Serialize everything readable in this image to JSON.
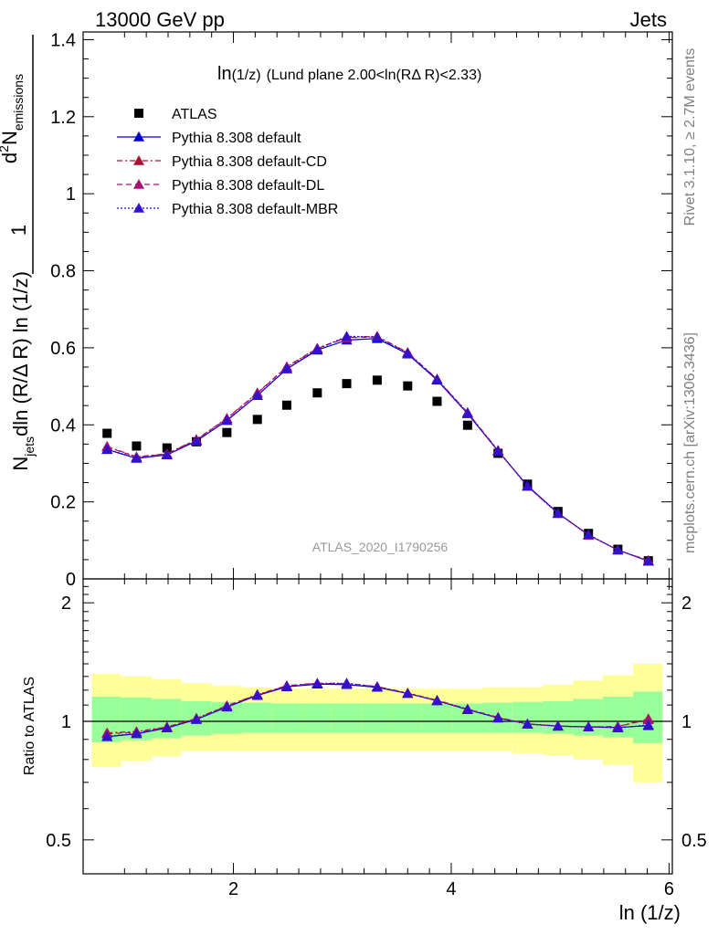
{
  "header": {
    "left": "13000 GeV pp",
    "right": "Jets"
  },
  "side_labels": {
    "rivet": "Rivet 3.1.10, ≥ 2.7M events",
    "mcplots": "mcplots.cern.ch [arXiv:1306.3436]"
  },
  "main_panel": {
    "title_main": "ln",
    "title_sub": "(1/z)",
    "title_rest": "(Lund plane 2.00<ln(RΔ R)<2.33)",
    "watermark": "ATLAS_2020_I1790256",
    "ylabel": {
      "num_prefix": "d",
      "num_sup": "2",
      "num_N": "N",
      "num_sub": "emissions",
      "den_N": "N",
      "den_sub": "jets",
      "den_rest": "dln (R/Δ R) ln (1/z)",
      "one": "1"
    }
  },
  "ratio_panel": {
    "ylabel": "Ratio to ATLAS"
  },
  "xlabel": "ln (1/z)",
  "colors": {
    "data": "#000000",
    "default": "#0000cc",
    "cd": "#aa1133",
    "dl": "#aa1177",
    "mbr": "#3311cc",
    "band_outer": "#ffff99",
    "band_inner": "#99ff99"
  },
  "chart_data": {
    "type": "scatter",
    "x": [
      0.84,
      1.11,
      1.39,
      1.66,
      1.94,
      2.22,
      2.49,
      2.77,
      3.04,
      3.32,
      3.6,
      3.87,
      4.15,
      4.43,
      4.7,
      4.98,
      5.26,
      5.53,
      5.81
    ],
    "x_edges": [
      0.7,
      0.97,
      1.25,
      1.52,
      1.8,
      2.08,
      2.35,
      2.63,
      2.9,
      3.18,
      3.46,
      3.73,
      4.01,
      4.29,
      4.56,
      4.84,
      5.12,
      5.39,
      5.67,
      5.94
    ],
    "xlim": [
      0.62,
      6.03
    ],
    "xticks": [
      "2",
      "4",
      "6"
    ],
    "main": {
      "ylim": [
        0,
        1.42
      ],
      "yticks": [
        "0",
        "0.2",
        "0.4",
        "0.6",
        "0.8",
        "1",
        "1.2",
        "1.4"
      ],
      "series": [
        {
          "name": "ATLAS",
          "style": "data",
          "values": [
            0.378,
            0.345,
            0.34,
            0.356,
            0.38,
            0.414,
            0.451,
            0.483,
            0.507,
            0.516,
            0.501,
            0.461,
            0.399,
            0.326,
            0.246,
            0.175,
            0.118,
            0.077,
            0.047
          ]
        },
        {
          "name": "Pythia 8.308 default",
          "style": "default",
          "values": [
            0.336,
            0.313,
            0.322,
            0.358,
            0.411,
            0.476,
            0.545,
            0.594,
            0.62,
            0.624,
            0.584,
            0.516,
            0.429,
            0.332,
            0.242,
            0.171,
            0.114,
            0.075,
            0.046
          ]
        },
        {
          "name": "Pythia 8.308 default-CD",
          "style": "cd",
          "values": [
            0.344,
            0.317,
            0.325,
            0.362,
            0.417,
            0.483,
            0.551,
            0.599,
            0.627,
            0.63,
            0.588,
            0.519,
            0.432,
            0.334,
            0.24,
            0.17,
            0.114,
            0.075,
            0.048
          ]
        },
        {
          "name": "Pythia 8.308 default-DL",
          "style": "dl",
          "values": [
            0.343,
            0.316,
            0.324,
            0.361,
            0.416,
            0.482,
            0.55,
            0.598,
            0.626,
            0.628,
            0.587,
            0.518,
            0.431,
            0.333,
            0.24,
            0.17,
            0.114,
            0.075,
            0.047
          ]
        },
        {
          "name": "Pythia 8.308 default-MBR",
          "style": "mbr",
          "values": [
            0.337,
            0.314,
            0.322,
            0.358,
            0.412,
            0.477,
            0.546,
            0.596,
            0.63,
            0.628,
            0.585,
            0.518,
            0.43,
            0.332,
            0.241,
            0.17,
            0.115,
            0.075,
            0.046
          ]
        }
      ]
    },
    "ratio": {
      "ylim": [
        0.41,
        2.3
      ],
      "yticks": [
        "0.5",
        "1",
        "2"
      ],
      "band_outer_lo": [
        0.765,
        0.795,
        0.815,
        0.84,
        0.84,
        0.84,
        0.84,
        0.84,
        0.84,
        0.84,
        0.84,
        0.84,
        0.84,
        0.84,
        0.83,
        0.82,
        0.8,
        0.775,
        0.7
      ],
      "band_outer_hi": [
        1.32,
        1.3,
        1.28,
        1.25,
        1.23,
        1.22,
        1.21,
        1.21,
        1.21,
        1.21,
        1.21,
        1.21,
        1.21,
        1.22,
        1.22,
        1.24,
        1.27,
        1.31,
        1.4
      ],
      "band_inner_lo": [
        0.885,
        0.895,
        0.905,
        0.92,
        0.93,
        0.935,
        0.935,
        0.935,
        0.935,
        0.935,
        0.935,
        0.935,
        0.935,
        0.935,
        0.935,
        0.93,
        0.92,
        0.91,
        0.88
      ],
      "band_inner_hi": [
        1.155,
        1.15,
        1.14,
        1.125,
        1.12,
        1.115,
        1.11,
        1.11,
        1.11,
        1.11,
        1.11,
        1.11,
        1.11,
        1.115,
        1.12,
        1.125,
        1.14,
        1.155,
        1.19
      ],
      "series": [
        {
          "name": "Pythia 8.308 default",
          "style": "default",
          "values": [
            0.914,
            0.93,
            0.962,
            1.011,
            1.087,
            1.163,
            1.224,
            1.243,
            1.24,
            1.22,
            1.177,
            1.128,
            1.071,
            1.02,
            0.985,
            0.973,
            0.968,
            0.965,
            0.975
          ]
        },
        {
          "name": "Pythia 8.308 default-CD",
          "style": "cd",
          "values": [
            0.935,
            0.942,
            0.968,
            1.018,
            1.096,
            1.17,
            1.232,
            1.25,
            1.248,
            1.226,
            1.18,
            1.132,
            1.075,
            1.024,
            0.985,
            0.972,
            0.968,
            0.97,
            1.015
          ]
        },
        {
          "name": "Pythia 8.308 default-DL",
          "style": "dl",
          "values": [
            0.93,
            0.938,
            0.966,
            1.015,
            1.094,
            1.168,
            1.23,
            1.248,
            1.246,
            1.224,
            1.178,
            1.13,
            1.073,
            1.022,
            0.984,
            0.972,
            0.968,
            0.97,
            1.01
          ]
        },
        {
          "name": "Pythia 8.308 default-MBR",
          "style": "mbr",
          "values": [
            0.916,
            0.932,
            0.962,
            1.012,
            1.088,
            1.165,
            1.226,
            1.246,
            1.25,
            1.222,
            1.178,
            1.128,
            1.072,
            1.02,
            0.984,
            0.972,
            0.968,
            0.962,
            0.98
          ]
        }
      ]
    }
  }
}
